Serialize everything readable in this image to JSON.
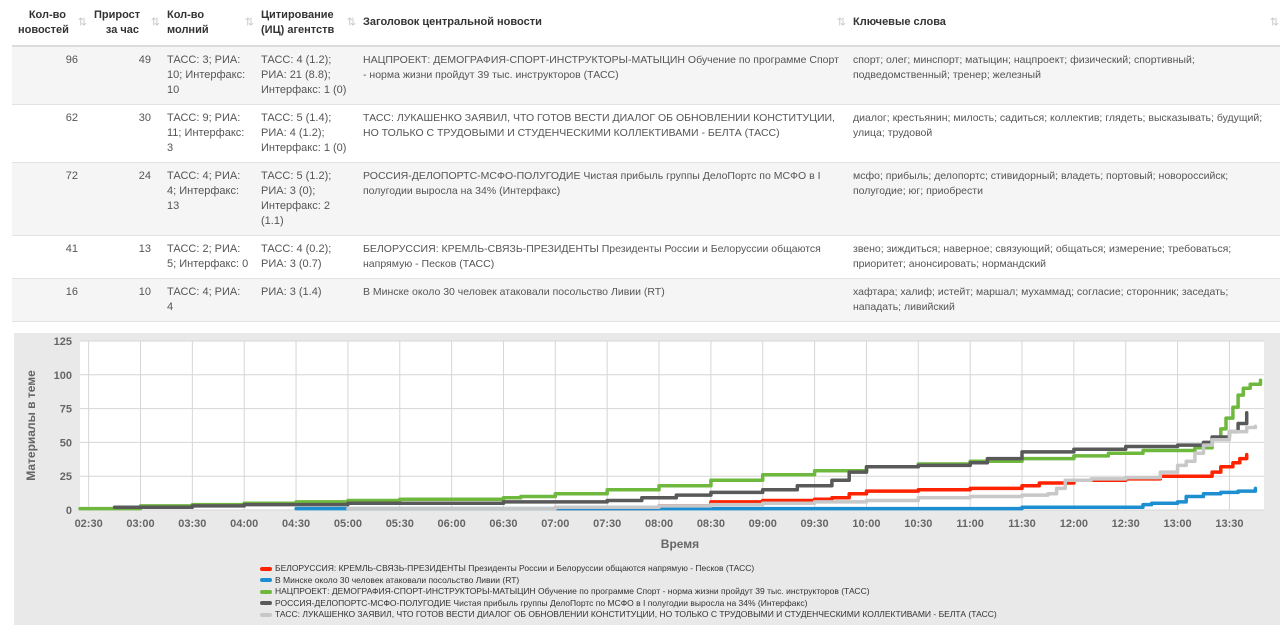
{
  "table": {
    "headers": [
      {
        "line1": "Кол-во",
        "line2": "новостей"
      },
      {
        "line1": "Прирост",
        "line2": "за час"
      },
      {
        "line1": "Кол-во",
        "line2": "молний"
      },
      {
        "line1": "Цитирование",
        "line2": "(ИЦ) агентств"
      },
      {
        "line1": "Заголовок центральной новости",
        "line2": ""
      },
      {
        "line1": "Ключевые слова",
        "line2": ""
      }
    ],
    "sort_icon": "⇅",
    "rows": [
      {
        "news": "96",
        "growth": "49",
        "flash": "ТАСС: 3; РИА: 10; Интерфакс: 10",
        "citation": "ТАСС: 4 (1.2); РИА: 21 (8.8); Интерфакс: 1 (0)",
        "headline": "НАЦПРОЕКТ: ДЕМОГРАФИЯ-СПОРТ-ИНСТРУКТОРЫ-МАТЫЦИН Обучение по программе Спорт - норма жизни пройдут 39 тыс. инструкторов (ТАСС)",
        "keywords": "спорт; олег; минспорт; матыцин; нацпроект; физический; спортивный; подведомственный; тренер; железный"
      },
      {
        "news": "62",
        "growth": "30",
        "flash": "ТАСС: 9; РИА: 11; Интерфакс: 3",
        "citation": "ТАСС: 5 (1.4); РИА: 4 (1.2); Интерфакс: 1 (0)",
        "headline": "ТАСС: ЛУКАШЕНКО ЗАЯВИЛ, ЧТО ГОТОВ ВЕСТИ ДИАЛОГ ОБ ОБНОВЛЕНИИ КОНСТИТУЦИИ, НО ТОЛЬКО С ТРУДОВЫМИ И СТУДЕНЧЕСКИМИ КОЛЛЕКТИВАМИ - БЕЛТА (ТАСС)",
        "keywords": "диалог; крестьянин; милость; садиться; коллектив; глядеть; высказывать; будущий; улица; трудовой"
      },
      {
        "news": "72",
        "growth": "24",
        "flash": "ТАСС: 4; РИА: 4; Интерфакс: 13",
        "citation": "ТАСС: 5 (1.2); РИА: 3 (0); Интерфакс: 2 (1.1)",
        "headline": "РОССИЯ-ДЕЛОПОРТС-МСФО-ПОЛУГОДИЕ Чистая прибыль группы ДелоПортс по МСФО в I полугодии выросла на 34% (Интерфакс)",
        "keywords": "мсфо; прибыль; делопортс; стивидорный; владеть; портовый; новороссийск; полугодие; юг; приобрести"
      },
      {
        "news": "41",
        "growth": "13",
        "flash": "ТАСС: 2; РИА: 5; Интерфакс: 0",
        "citation": "ТАСС: 4 (0.2); РИА: 3 (0.7)",
        "headline": "БЕЛОРУССИЯ: КРЕМЛЬ-СВЯЗЬ-ПРЕЗИДЕНТЫ Президенты России и Белоруссии общаются напрямую - Песков (ТАСС)",
        "keywords": "звено; зиждиться; наверное; связующий; общаться; измерение; требоваться; приоритет; анонсировать; нормандский"
      },
      {
        "news": "16",
        "growth": "10",
        "flash": "ТАСС: 4; РИА: 4",
        "citation": "РИА: 3 (1.4)",
        "headline": "В Минске около 30 человек атаковали посольство Ливии (RT)",
        "keywords": "хафтара; халиф; истейт; маршал; мухаммад; согласие; сторонник; заседать; нападать; ливийский"
      }
    ]
  },
  "chart_data": {
    "type": "line",
    "xlabel": "Время",
    "ylabel": "Материалы в теме",
    "ylim": [
      0,
      125
    ],
    "yticks": [
      0,
      25,
      50,
      75,
      100,
      125
    ],
    "xlim": [
      145,
      830
    ],
    "xticks": [
      150,
      180,
      210,
      240,
      270,
      300,
      330,
      360,
      390,
      420,
      450,
      480,
      510,
      540,
      570,
      600,
      630,
      660,
      690,
      720,
      750,
      780,
      810
    ],
    "xtick_labels": [
      "02:30",
      "03:00",
      "03:30",
      "04:00",
      "04:30",
      "05:00",
      "05:30",
      "06:00",
      "06:30",
      "07:00",
      "07:30",
      "08:00",
      "08:30",
      "09:00",
      "09:30",
      "10:00",
      "10:30",
      "11:00",
      "11:30",
      "12:00",
      "12:30",
      "13:00",
      "13:30"
    ],
    "grid": true,
    "legend_position": "bottom",
    "series": [
      {
        "name": "БЕЛОРУССИЯ: КРЕМЛЬ-СВЯЗЬ-ПРЕЗИДЕНТЫ Президенты России и Белоруссии общаются напрямую - Песков (ТАСС)",
        "color": "#ff2200",
        "points": [
          [
            420,
            1
          ],
          [
            480,
            3
          ],
          [
            510,
            6
          ],
          [
            540,
            7
          ],
          [
            570,
            8
          ],
          [
            580,
            9
          ],
          [
            590,
            12
          ],
          [
            600,
            14
          ],
          [
            630,
            15
          ],
          [
            660,
            16
          ],
          [
            690,
            18
          ],
          [
            700,
            20
          ],
          [
            720,
            22
          ],
          [
            750,
            23
          ],
          [
            770,
            25
          ],
          [
            800,
            28
          ],
          [
            805,
            32
          ],
          [
            812,
            35
          ],
          [
            816,
            38
          ],
          [
            820,
            41
          ]
        ]
      },
      {
        "name": "В Минске около 30 человек атаковали посольство Ливии (RT)",
        "color": "#1d8fd1",
        "points": [
          [
            270,
            1
          ],
          [
            480,
            1
          ],
          [
            540,
            1
          ],
          [
            600,
            1
          ],
          [
            660,
            1
          ],
          [
            690,
            2
          ],
          [
            720,
            2
          ],
          [
            750,
            2
          ],
          [
            760,
            4
          ],
          [
            765,
            5
          ],
          [
            780,
            6
          ],
          [
            785,
            10
          ],
          [
            795,
            12
          ],
          [
            805,
            13
          ],
          [
            815,
            14
          ],
          [
            825,
            16
          ]
        ]
      },
      {
        "name": "НАЦПРОЕКТ: ДЕМОГРАФИЯ-СПОРТ-ИНСТРУКТОРЫ-МАТЫЦИН Обучение по программе Спорт - норма жизни пройдут 39 тыс. инструкторов (ТАСС)",
        "color": "#6fb83e",
        "points": [
          [
            145,
            1
          ],
          [
            180,
            3
          ],
          [
            210,
            4
          ],
          [
            240,
            5
          ],
          [
            270,
            6
          ],
          [
            300,
            7
          ],
          [
            330,
            8
          ],
          [
            360,
            8
          ],
          [
            390,
            9
          ],
          [
            400,
            10
          ],
          [
            420,
            12
          ],
          [
            450,
            15
          ],
          [
            480,
            18
          ],
          [
            510,
            22
          ],
          [
            540,
            26
          ],
          [
            570,
            29
          ],
          [
            600,
            32
          ],
          [
            630,
            34
          ],
          [
            660,
            36
          ],
          [
            690,
            38
          ],
          [
            720,
            40
          ],
          [
            735,
            40
          ],
          [
            740,
            42
          ],
          [
            760,
            44
          ],
          [
            790,
            46
          ],
          [
            800,
            52
          ],
          [
            805,
            60
          ],
          [
            808,
            68
          ],
          [
            812,
            76
          ],
          [
            815,
            85
          ],
          [
            818,
            90
          ],
          [
            822,
            93
          ],
          [
            828,
            96
          ]
        ]
      },
      {
        "name": "РОССИЯ-ДЕЛОПОРТС-МСФО-ПОЛУГОДИЕ Чистая прибыль группы ДелоПортс по МСФО в I полугодии выросла на 34% (Интерфакс)",
        "color": "#595959",
        "points": [
          [
            165,
            2
          ],
          [
            210,
            3
          ],
          [
            240,
            4
          ],
          [
            270,
            4
          ],
          [
            300,
            5
          ],
          [
            330,
            5
          ],
          [
            360,
            5
          ],
          [
            390,
            6
          ],
          [
            420,
            6
          ],
          [
            450,
            7
          ],
          [
            470,
            9
          ],
          [
            490,
            11
          ],
          [
            510,
            13
          ],
          [
            540,
            15
          ],
          [
            560,
            18
          ],
          [
            580,
            22
          ],
          [
            590,
            28
          ],
          [
            600,
            32
          ],
          [
            630,
            33
          ],
          [
            660,
            35
          ],
          [
            670,
            38
          ],
          [
            690,
            43
          ],
          [
            720,
            45
          ],
          [
            750,
            47
          ],
          [
            780,
            48
          ],
          [
            795,
            50
          ],
          [
            800,
            54
          ],
          [
            810,
            58
          ],
          [
            815,
            64
          ],
          [
            820,
            72
          ]
        ]
      },
      {
        "name": "ТАСС: ЛУКАШЕНКО ЗАЯВИЛ, ЧТО ГОТОВ ВЕСТИ ДИАЛОГ ОБ ОБНОВЛЕНИИ КОНСТИТУЦИИ, НО ТОЛЬКО С ТРУДОВЫМИ И СТУДЕНЧЕСКИМИ КОЛЛЕКТИВАМИ - БЕЛТА (ТАСС)",
        "color": "#c8c8c8",
        "points": [
          [
            300,
            1
          ],
          [
            420,
            2
          ],
          [
            480,
            3
          ],
          [
            510,
            4
          ],
          [
            540,
            5
          ],
          [
            570,
            6
          ],
          [
            600,
            7
          ],
          [
            630,
            9
          ],
          [
            660,
            10
          ],
          [
            690,
            11
          ],
          [
            705,
            12
          ],
          [
            710,
            16
          ],
          [
            715,
            22
          ],
          [
            730,
            23
          ],
          [
            750,
            24
          ],
          [
            770,
            28
          ],
          [
            780,
            33
          ],
          [
            785,
            36
          ],
          [
            790,
            42
          ],
          [
            795,
            48
          ],
          [
            800,
            52
          ],
          [
            810,
            58
          ],
          [
            820,
            61
          ],
          [
            825,
            62
          ]
        ]
      }
    ]
  }
}
